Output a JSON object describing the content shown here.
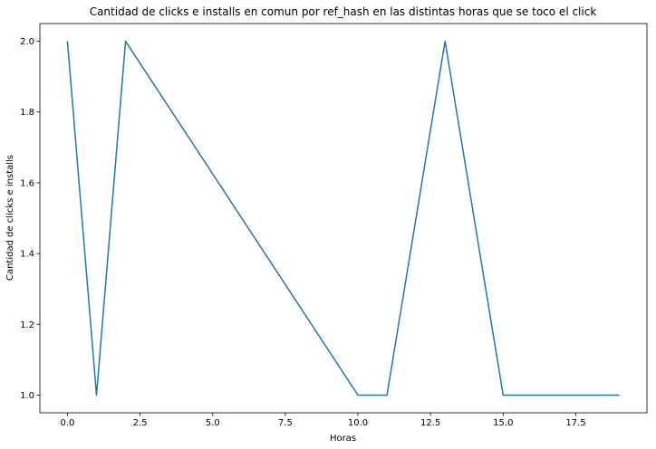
{
  "chart_data": {
    "type": "line",
    "title": "Cantidad de clicks e installs en comun por ref_hash en las distintas horas que se toco el click",
    "xlabel": "Horas",
    "ylabel": "Cantidad de clicks e installs",
    "xlim": [
      -0.95,
      19.95
    ],
    "ylim": [
      0.95,
      2.05
    ],
    "xticks": [
      0.0,
      2.5,
      5.0,
      7.5,
      10.0,
      12.5,
      15.0,
      17.5
    ],
    "xtick_labels": [
      "0.0",
      "2.5",
      "5.0",
      "7.5",
      "10.0",
      "12.5",
      "15.0",
      "17.5"
    ],
    "yticks": [
      1.0,
      1.2,
      1.4,
      1.6,
      1.8,
      2.0
    ],
    "ytick_labels": [
      "1.0",
      "1.2",
      "1.4",
      "1.6",
      "1.8",
      "2.0"
    ],
    "grid": false,
    "legend": false,
    "series": [
      {
        "color": "#1f77b4",
        "x": [
          0,
          1,
          2,
          10,
          11,
          13,
          15,
          19
        ],
        "y": [
          2,
          1,
          2,
          1,
          1,
          2,
          1,
          1
        ]
      }
    ]
  }
}
